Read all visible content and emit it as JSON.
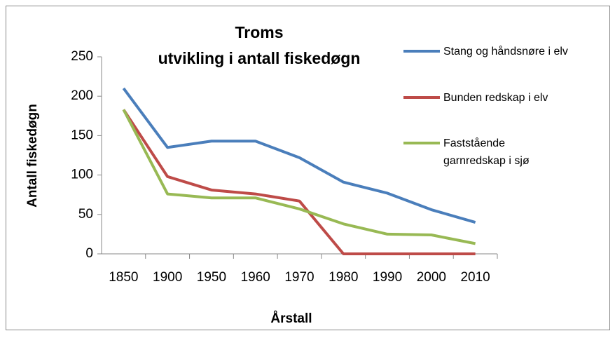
{
  "chart_data": {
    "type": "line",
    "title": "Troms",
    "subtitle": "utvikling i antall fiskedøgn",
    "x_label": "Årstall",
    "y_label": "Antall fiskedøgn",
    "categories": [
      "1850",
      "1900",
      "1950",
      "1960",
      "1970",
      "1980",
      "1990",
      "2000",
      "2010"
    ],
    "series": [
      {
        "name": "Stang og håndsnøre i elv",
        "color": "#4a7ebb",
        "values": [
          210,
          135,
          143,
          143,
          122,
          91,
          77,
          56,
          40
        ]
      },
      {
        "name": "Bunden redskap i elv",
        "color": "#be4b48",
        "values": [
          183,
          98,
          81,
          76,
          67,
          0,
          0,
          0,
          0
        ]
      },
      {
        "name": "Faststående garnredskap i sjø",
        "color": "#98b954",
        "values": [
          183,
          76,
          71,
          71,
          57,
          38,
          25,
          24,
          13
        ]
      }
    ],
    "ylim": [
      0,
      250
    ],
    "yticks": [
      0,
      50,
      100,
      150,
      200,
      250
    ],
    "grid": false,
    "legend": "right"
  }
}
